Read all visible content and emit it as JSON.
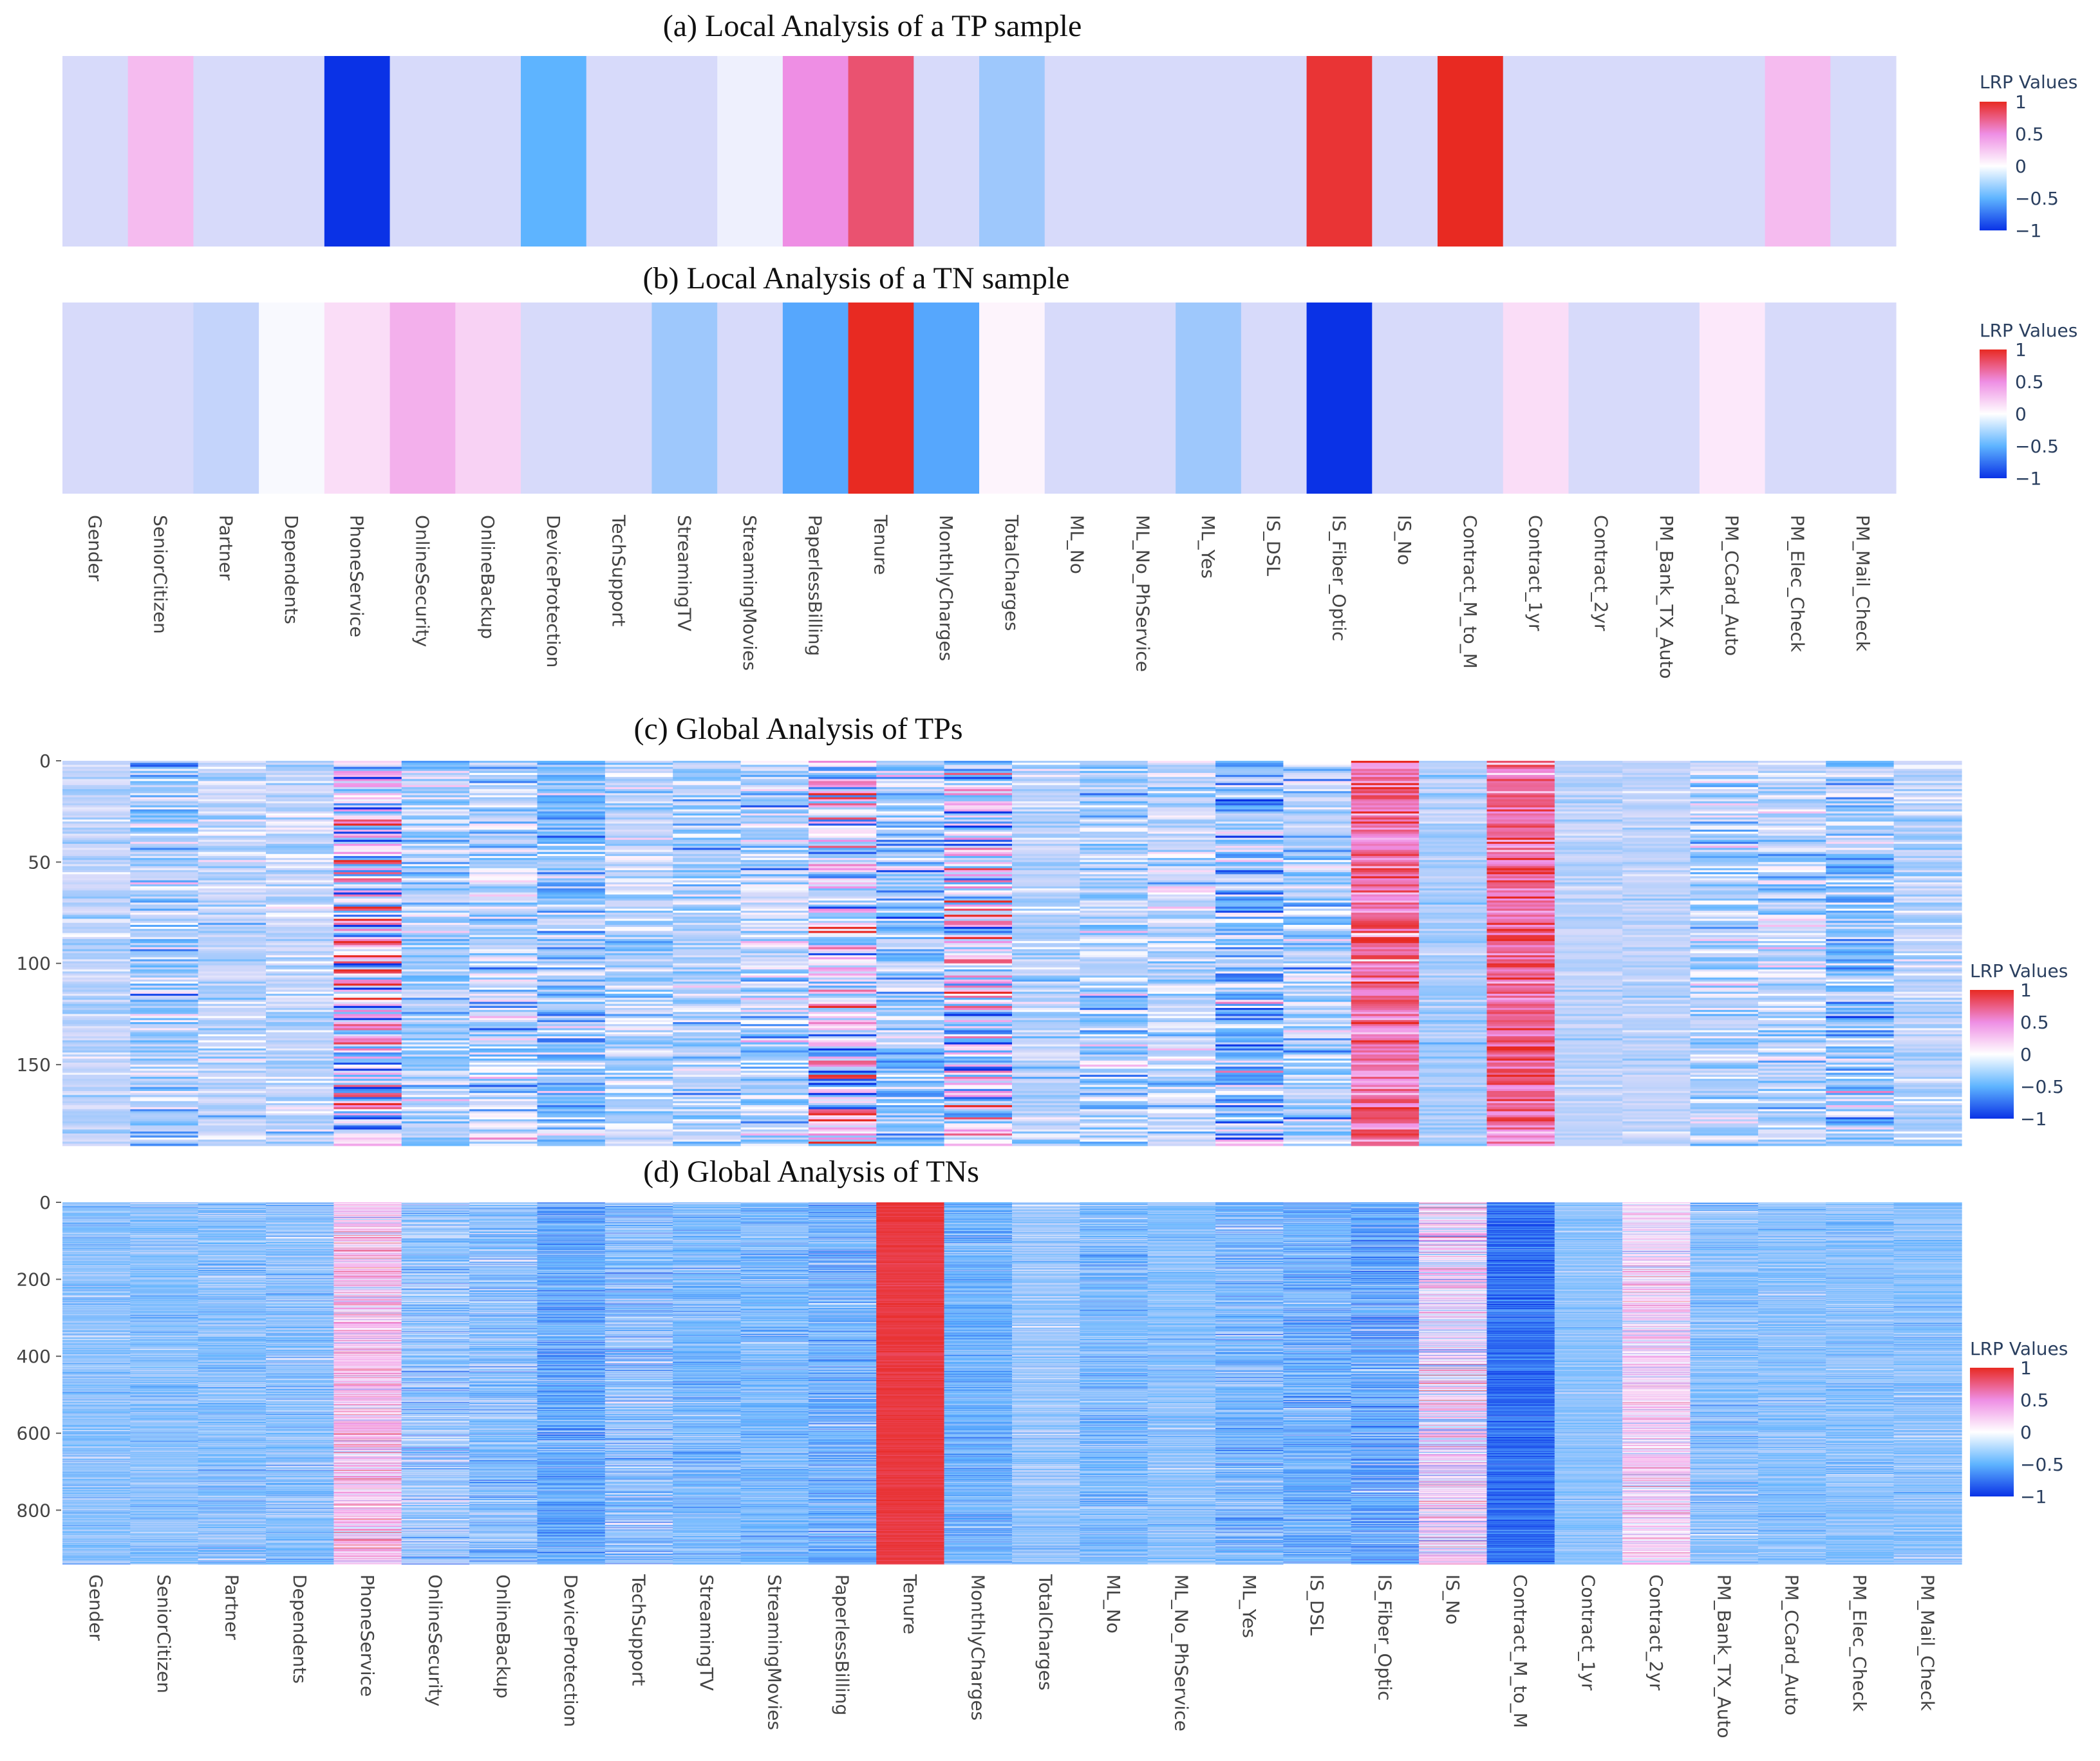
{
  "chart_data": [
    {
      "id": "a",
      "type": "heatmap",
      "title": "(a) Local Analysis of a TP sample",
      "rows": 1,
      "features": [
        "Gender",
        "SeniorCitizen",
        "Partner",
        "Dependents",
        "PhoneService",
        "OnlineSecurity",
        "OnlineBackup",
        "DeviceProtection",
        "TechSupport",
        "StreamingTV",
        "StreamingMovies",
        "PaperlessBilling",
        "Tenure",
        "MonthlyCharges",
        "TotalCharges",
        "ML_No",
        "ML_No_PhService",
        "ML_Yes",
        "IS_DSL",
        "IS_Fiber_Optic",
        "IS_No",
        "Contract_M_to_M",
        "Contract_1yr",
        "Contract_2yr",
        "PM_Bank_TX_Auto",
        "PM_CCard_Auto",
        "PM_Elec_Check",
        "PM_Mail_Check"
      ],
      "values": [
        [
          -0.12,
          0.3,
          -0.12,
          -0.12,
          -1.0,
          -0.12,
          -0.12,
          -0.5,
          -0.12,
          -0.12,
          -0.05,
          0.5,
          0.8,
          -0.12,
          -0.3,
          -0.12,
          -0.12,
          -0.12,
          -0.12,
          0.95,
          -0.12,
          1.0,
          -0.12,
          -0.12,
          -0.12,
          -0.12,
          0.3,
          -0.12
        ]
      ],
      "colorbar": {
        "title": "LRP Values",
        "range": [
          -1,
          1
        ],
        "ticks": [
          "1",
          "0.5",
          "0",
          "−0.5",
          "−1"
        ]
      },
      "show_x_labels": false,
      "y_ticks": []
    },
    {
      "id": "b",
      "type": "heatmap",
      "title": "(b) Local Analysis of a TN sample",
      "rows": 1,
      "features": [
        "Gender",
        "SeniorCitizen",
        "Partner",
        "Dependents",
        "PhoneService",
        "OnlineSecurity",
        "OnlineBackup",
        "DeviceProtection",
        "TechSupport",
        "StreamingTV",
        "StreamingMovies",
        "PaperlessBilling",
        "Tenure",
        "MonthlyCharges",
        "TotalCharges",
        "ML_No",
        "ML_No_PhService",
        "ML_Yes",
        "IS_DSL",
        "IS_Fiber_Optic",
        "IS_No",
        "Contract_M_to_M",
        "Contract_1yr",
        "Contract_2yr",
        "PM_Bank_TX_Auto",
        "PM_CCard_Auto",
        "PM_Elec_Check",
        "PM_Mail_Check"
      ],
      "values": [
        [
          -0.12,
          -0.12,
          -0.18,
          -0.02,
          0.15,
          0.35,
          0.2,
          -0.12,
          -0.12,
          -0.3,
          -0.12,
          -0.55,
          1.0,
          -0.55,
          0.05,
          -0.12,
          -0.12,
          -0.3,
          -0.12,
          -1.0,
          -0.12,
          -0.12,
          0.15,
          -0.12,
          -0.12,
          0.1,
          -0.12,
          -0.12
        ]
      ],
      "colorbar": {
        "title": "LRP Values",
        "range": [
          -1,
          1
        ],
        "ticks": [
          "1",
          "0.5",
          "0",
          "−0.5",
          "−1"
        ]
      },
      "show_x_labels": true,
      "y_ticks": []
    },
    {
      "id": "c",
      "type": "heatmap",
      "title": "(c) Global Analysis of TPs",
      "rows": 190,
      "features": [
        "Gender",
        "SeniorCitizen",
        "Partner",
        "Dependents",
        "PhoneService",
        "OnlineSecurity",
        "OnlineBackup",
        "DeviceProtection",
        "TechSupport",
        "StreamingTV",
        "StreamingMovies",
        "PaperlessBilling",
        "Tenure",
        "MonthlyCharges",
        "TotalCharges",
        "ML_No",
        "ML_No_PhService",
        "ML_Yes",
        "IS_DSL",
        "IS_Fiber_Optic",
        "IS_No",
        "Contract_M_to_M",
        "Contract_1yr",
        "Contract_2yr",
        "PM_Bank_TX_Auto",
        "PM_CCard_Auto",
        "PM_Elec_Check",
        "PM_Mail_Check"
      ],
      "column_profiles": [
        {
          "mean": -0.2,
          "spread": 0.15
        },
        {
          "mean": -0.25,
          "spread": 0.35
        },
        {
          "mean": -0.2,
          "spread": 0.2
        },
        {
          "mean": -0.2,
          "spread": 0.2
        },
        {
          "mean": 0.0,
          "spread": 1.0
        },
        {
          "mean": -0.25,
          "spread": 0.3
        },
        {
          "mean": -0.2,
          "spread": 0.45
        },
        {
          "mean": -0.35,
          "spread": 0.35
        },
        {
          "mean": -0.2,
          "spread": 0.25
        },
        {
          "mean": -0.25,
          "spread": 0.3
        },
        {
          "mean": -0.2,
          "spread": 0.35
        },
        {
          "mean": 0.0,
          "spread": 0.8
        },
        {
          "mean": -0.3,
          "spread": 0.45
        },
        {
          "mean": 0.0,
          "spread": 0.9
        },
        {
          "mean": -0.2,
          "spread": 0.2
        },
        {
          "mean": -0.25,
          "spread": 0.3
        },
        {
          "mean": -0.2,
          "spread": 0.3
        },
        {
          "mean": -0.35,
          "spread": 0.5
        },
        {
          "mean": -0.25,
          "spread": 0.35
        },
        {
          "mean": 0.65,
          "spread": 0.35
        },
        {
          "mean": -0.25,
          "spread": 0.15
        },
        {
          "mean": 0.7,
          "spread": 0.3
        },
        {
          "mean": -0.2,
          "spread": 0.1
        },
        {
          "mean": -0.2,
          "spread": 0.1
        },
        {
          "mean": -0.2,
          "spread": 0.3
        },
        {
          "mean": -0.2,
          "spread": 0.3
        },
        {
          "mean": -0.3,
          "spread": 0.45
        },
        {
          "mean": -0.2,
          "spread": 0.2
        }
      ],
      "colorbar": {
        "title": "LRP Values",
        "range": [
          -1,
          1
        ],
        "ticks": [
          "1",
          "0.5",
          "0",
          "−0.5",
          "−1"
        ]
      },
      "show_x_labels": false,
      "y_ticks": [
        0,
        50,
        100,
        150
      ]
    },
    {
      "id": "d",
      "type": "heatmap",
      "title": "(d) Global Analysis of TNs",
      "rows": 940,
      "features": [
        "Gender",
        "SeniorCitizen",
        "Partner",
        "Dependents",
        "PhoneService",
        "OnlineSecurity",
        "OnlineBackup",
        "DeviceProtection",
        "TechSupport",
        "StreamingTV",
        "StreamingMovies",
        "PaperlessBilling",
        "Tenure",
        "MonthlyCharges",
        "TotalCharges",
        "ML_No",
        "ML_No_PhService",
        "ML_Yes",
        "IS_DSL",
        "IS_Fiber_Optic",
        "IS_No",
        "Contract_M_to_M",
        "Contract_1yr",
        "Contract_2yr",
        "PM_Bank_TX_Auto",
        "PM_CCard_Auto",
        "PM_Elec_Check",
        "PM_Mail_Check"
      ],
      "column_profiles": [
        {
          "mean": -0.35,
          "spread": 0.2
        },
        {
          "mean": -0.35,
          "spread": 0.2
        },
        {
          "mean": -0.35,
          "spread": 0.25
        },
        {
          "mean": -0.35,
          "spread": 0.25
        },
        {
          "mean": 0.25,
          "spread": 0.45
        },
        {
          "mean": -0.3,
          "spread": 0.35
        },
        {
          "mean": -0.35,
          "spread": 0.3
        },
        {
          "mean": -0.5,
          "spread": 0.3
        },
        {
          "mean": -0.35,
          "spread": 0.35
        },
        {
          "mean": -0.4,
          "spread": 0.25
        },
        {
          "mean": -0.4,
          "spread": 0.25
        },
        {
          "mean": -0.45,
          "spread": 0.3
        },
        {
          "mean": 0.92,
          "spread": 0.08
        },
        {
          "mean": -0.45,
          "spread": 0.25
        },
        {
          "mean": -0.3,
          "spread": 0.2
        },
        {
          "mean": -0.4,
          "spread": 0.25
        },
        {
          "mean": -0.35,
          "spread": 0.2
        },
        {
          "mean": -0.4,
          "spread": 0.3
        },
        {
          "mean": -0.45,
          "spread": 0.3
        },
        {
          "mean": -0.5,
          "spread": 0.35
        },
        {
          "mean": 0.1,
          "spread": 0.55
        },
        {
          "mean": -0.75,
          "spread": 0.25
        },
        {
          "mean": -0.35,
          "spread": 0.15
        },
        {
          "mean": 0.15,
          "spread": 0.4
        },
        {
          "mean": -0.35,
          "spread": 0.25
        },
        {
          "mean": -0.35,
          "spread": 0.2
        },
        {
          "mean": -0.35,
          "spread": 0.2
        },
        {
          "mean": -0.35,
          "spread": 0.2
        }
      ],
      "colorbar": {
        "title": "LRP Values",
        "range": [
          -1,
          1
        ],
        "ticks": [
          "1",
          "0.5",
          "0",
          "−0.5",
          "−1"
        ]
      },
      "show_x_labels": true,
      "y_ticks": [
        0,
        200,
        400,
        600,
        800
      ]
    }
  ]
}
